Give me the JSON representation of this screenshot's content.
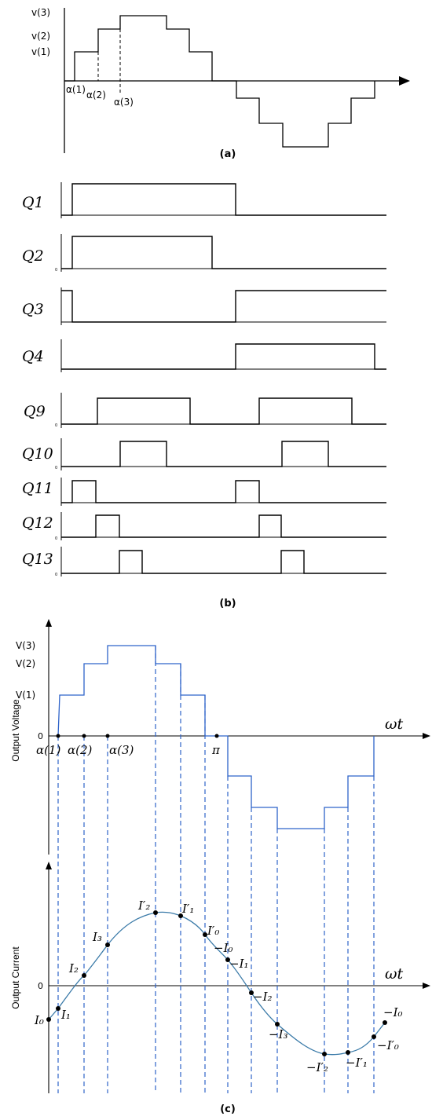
{
  "panel_a": {
    "level_labels": [
      "v(3)",
      "v(2)",
      "v(1)"
    ],
    "alpha_labels": [
      "α(1)",
      "α(2)",
      "α(3)"
    ],
    "caption": "(a)"
  },
  "panel_b": {
    "signals": [
      "Q1",
      "Q2",
      "Q3",
      "Q4",
      "Q9",
      "Q10",
      "Q11",
      "Q12",
      "Q13"
    ],
    "zero_label": "0",
    "caption": "(b)"
  },
  "panel_c": {
    "voltage_axis_label": "Output Voltage",
    "current_axis_label": "Output Current",
    "voltage_levels": [
      "V(3)",
      "V(2)",
      "V(1)"
    ],
    "zero_label": "0",
    "alpha_labels": [
      "α(1)",
      "α(2)",
      "α(3)"
    ],
    "pi_label": "π",
    "x_label": "ωt",
    "current_labels": [
      "I₀",
      "I₁",
      "I₂",
      "I₃",
      "I′₂",
      "I′₁",
      "I′₀",
      "−I₀",
      "−I₁",
      "−I₂",
      "−I₃",
      "−I′₂",
      "−I′₁",
      "−I′₀",
      "−I₀"
    ],
    "caption": "(c)"
  }
}
